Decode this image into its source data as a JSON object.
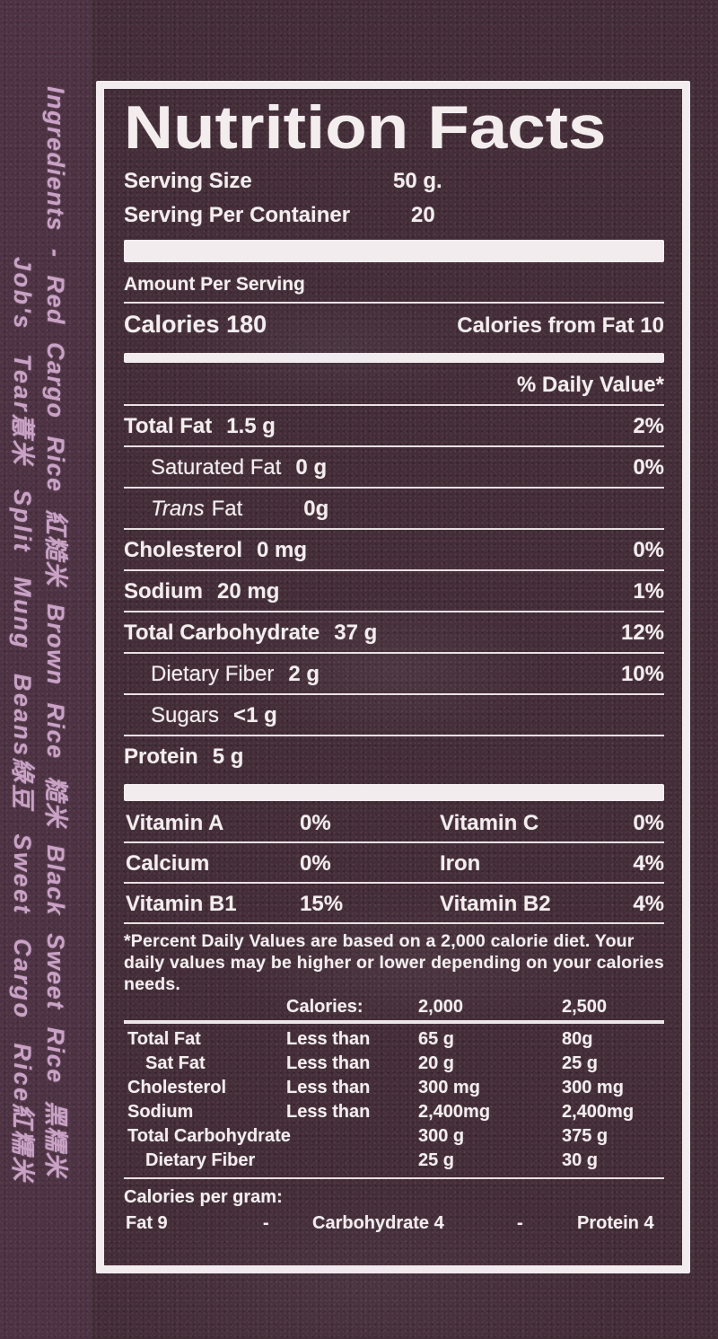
{
  "side_text": {
    "line1": "Ingredients - Red Cargo Rice 紅糙米  Brown Rice 糙米  Black Sweet Rice 黑糯米",
    "line2": "Job's Tear薏米  Split Mung Beans綠豆  Sweet Cargo Rice紅糯米"
  },
  "label": {
    "title": "Nutrition Facts",
    "serving": {
      "size_label": "Serving Size",
      "size_value": "50 g.",
      "per_container_label": "Serving Per Container",
      "per_container_value": "20"
    },
    "amount_per_serving": "Amount Per Serving",
    "calories": {
      "label": "Calories",
      "value": "180",
      "from_fat_label": "Calories from Fat",
      "from_fat_value": "10"
    },
    "daily_value_header": "% Daily Value*",
    "nutrients": [
      {
        "name": "Total Fat",
        "amount": "1.5 g",
        "dv": "2%"
      },
      {
        "name": "Saturated Fat",
        "amount": "0 g",
        "dv": "0%"
      },
      {
        "prefix": "Trans",
        "name": "Fat",
        "amount": "0g",
        "dv": ""
      },
      {
        "name": "Cholesterol",
        "amount": "0 mg",
        "dv": "0%"
      },
      {
        "name": "Sodium",
        "amount": "20 mg",
        "dv": "1%"
      },
      {
        "name": "Total Carbohydrate",
        "amount": "37 g",
        "dv": "12%"
      },
      {
        "name": "Dietary Fiber",
        "amount": "2 g",
        "dv": "10%"
      },
      {
        "name": "Sugars",
        "amount": "<1 g",
        "dv": ""
      },
      {
        "name": "Protein",
        "amount": "5 g",
        "dv": ""
      }
    ],
    "vitamins": [
      {
        "left_name": "Vitamin A",
        "left_value": "0%",
        "right_name": "Vitamin C",
        "right_value": "0%"
      },
      {
        "left_name": "Calcium",
        "left_value": "0%",
        "right_name": "Iron",
        "right_value": "4%"
      },
      {
        "left_name": "Vitamin B1",
        "left_value": "15%",
        "right_name": "Vitamin B2",
        "right_value": "4%"
      }
    ],
    "footnote": "*Percent Daily Values are based on a 2,000 calorie diet. Your daily values may be higher or lower depending on your calories needs.",
    "dv_table": {
      "header": {
        "label": "Calories:",
        "col1": "2,000",
        "col2": "2,500"
      },
      "rows": [
        {
          "name": "Total Fat",
          "qualifier": "Less than",
          "v1": "65 g",
          "v2": "80g"
        },
        {
          "name": "Sat Fat",
          "qualifier": "Less than",
          "v1": "20 g",
          "v2": "25 g"
        },
        {
          "name": "Cholesterol",
          "qualifier": "Less than",
          "v1": "300 mg",
          "v2": "300 mg"
        },
        {
          "name": "Sodium",
          "qualifier": "Less than",
          "v1": "2,400mg",
          "v2": "2,400mg"
        },
        {
          "name": "Total Carbohydrate",
          "qualifier": "",
          "v1": "300 g",
          "v2": "375 g"
        },
        {
          "name": "Dietary Fiber",
          "qualifier": "",
          "v1": "25 g",
          "v2": "30 g"
        }
      ]
    },
    "calories_per_gram": {
      "label": "Calories per gram:",
      "items": [
        "Fat 9",
        "-",
        "Carbohydrate 4",
        "-",
        "Protein 4"
      ]
    }
  },
  "colors": {
    "package_background": "#432d37",
    "label_ink": "#f2ecee",
    "side_text": "#c9a2c6"
  }
}
